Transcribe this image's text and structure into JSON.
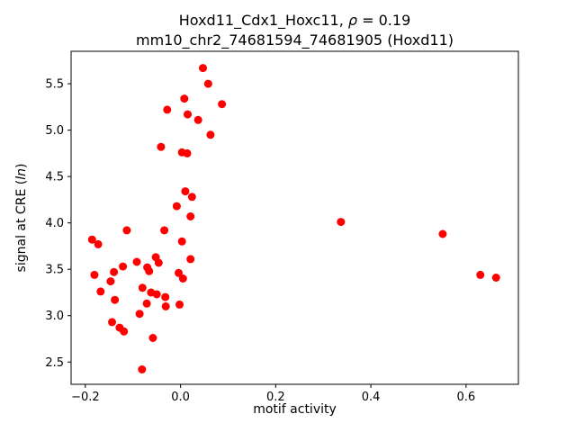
{
  "title": {
    "line1_prefix": "Hoxd11_Cdx1_Hoxc11, ",
    "rho": "ρ",
    "line1_suffix": " = 0.19",
    "line2": "mm10_chr2_74681594_74681905 (Hoxd11)"
  },
  "axes": {
    "xlabel": "motif activity",
    "ylabel_prefix": "signal at CRE (",
    "ylabel_italic": "ln",
    "ylabel_suffix": ")",
    "x_ticks": [
      {
        "value": -0.2,
        "label": "−0.2"
      },
      {
        "value": 0.0,
        "label": "0.0"
      },
      {
        "value": 0.2,
        "label": "0.2"
      },
      {
        "value": 0.4,
        "label": "0.4"
      },
      {
        "value": 0.6,
        "label": "0.6"
      }
    ],
    "y_ticks": [
      {
        "value": 2.5,
        "label": "2.5"
      },
      {
        "value": 3.0,
        "label": "3.0"
      },
      {
        "value": 3.5,
        "label": "3.5"
      },
      {
        "value": 4.0,
        "label": "4.0"
      },
      {
        "value": 4.5,
        "label": "4.5"
      },
      {
        "value": 5.0,
        "label": "5.0"
      },
      {
        "value": 5.5,
        "label": "5.5"
      }
    ]
  },
  "chart_data": {
    "type": "scatter",
    "title": "Hoxd11_Cdx1_Hoxc11, ρ = 0.19 | mm10_chr2_74681594_74681905 (Hoxd11)",
    "xlabel": "motif activity",
    "ylabel": "signal at CRE (ln)",
    "xlim": [
      -0.23,
      0.71
    ],
    "ylim": [
      2.26,
      5.85
    ],
    "grid": false,
    "marker_color": "#ff0000",
    "marker_radius_px": 4.5,
    "spine_color": "#000000",
    "points": [
      [
        0.047,
        5.67
      ],
      [
        0.058,
        5.5
      ],
      [
        0.008,
        5.34
      ],
      [
        0.087,
        5.28
      ],
      [
        -0.028,
        5.22
      ],
      [
        0.015,
        5.17
      ],
      [
        0.037,
        5.11
      ],
      [
        0.063,
        4.95
      ],
      [
        -0.041,
        4.82
      ],
      [
        0.003,
        4.76
      ],
      [
        0.014,
        4.75
      ],
      [
        0.01,
        4.34
      ],
      [
        0.024,
        4.28
      ],
      [
        -0.008,
        4.18
      ],
      [
        0.021,
        4.07
      ],
      [
        0.337,
        4.01
      ],
      [
        0.551,
        3.88
      ],
      [
        0.63,
        3.44
      ],
      [
        0.663,
        3.41
      ],
      [
        -0.113,
        3.92
      ],
      [
        -0.034,
        3.92
      ],
      [
        -0.186,
        3.82
      ],
      [
        -0.173,
        3.77
      ],
      [
        0.003,
        3.8
      ],
      [
        -0.052,
        3.63
      ],
      [
        -0.046,
        3.57
      ],
      [
        0.021,
        3.61
      ],
      [
        -0.092,
        3.58
      ],
      [
        -0.121,
        3.53
      ],
      [
        -0.07,
        3.52
      ],
      [
        -0.066,
        3.48
      ],
      [
        -0.181,
        3.44
      ],
      [
        -0.14,
        3.47
      ],
      [
        -0.004,
        3.46
      ],
      [
        0.005,
        3.4
      ],
      [
        -0.147,
        3.37
      ],
      [
        -0.08,
        3.3
      ],
      [
        -0.168,
        3.26
      ],
      [
        -0.062,
        3.25
      ],
      [
        -0.05,
        3.23
      ],
      [
        -0.032,
        3.2
      ],
      [
        -0.138,
        3.17
      ],
      [
        -0.071,
        3.13
      ],
      [
        -0.002,
        3.12
      ],
      [
        -0.031,
        3.1
      ],
      [
        -0.086,
        3.02
      ],
      [
        -0.144,
        2.93
      ],
      [
        -0.128,
        2.87
      ],
      [
        -0.119,
        2.83
      ],
      [
        -0.058,
        2.76
      ],
      [
        -0.081,
        2.42
      ]
    ]
  }
}
